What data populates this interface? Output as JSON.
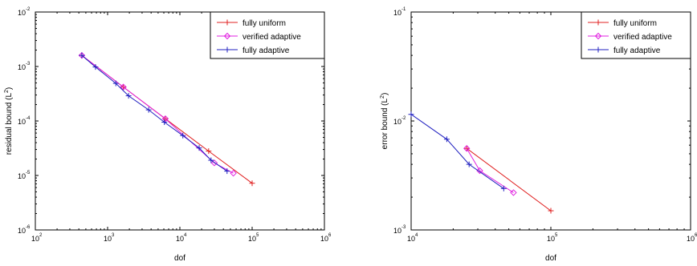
{
  "chart_data": [
    {
      "type": "line",
      "xscale": "log",
      "yscale": "log",
      "xlabel": "dof",
      "ylabel": "residual bound (L",
      "ylabel_sup": "2",
      "ylabel_suffix": ")",
      "xlim": [
        100,
        1000000
      ],
      "ylim": [
        1e-06,
        0.01
      ],
      "x_tick_exponents": [
        "2",
        "3",
        "4",
        "5",
        "6"
      ],
      "y_tick_exponents": [
        "-6",
        "-5",
        "-4",
        "-3",
        "-2"
      ],
      "grid": false,
      "legend_position": "top-right",
      "series": [
        {
          "name": "fully uniform",
          "color": "#e02020",
          "marker": "+",
          "x": [
            440,
            1650,
            6300,
            25000,
            100000
          ],
          "y": [
            0.0016,
            0.00042,
            0.00011,
            2.8e-05,
            7.2e-06
          ]
        },
        {
          "name": "verified adaptive",
          "color": "#e020e0",
          "marker": "diamond",
          "x": [
            440,
            1650,
            6300,
            30000,
            55000
          ],
          "y": [
            0.0016,
            0.00042,
            0.00011,
            1.7e-05,
            1.1e-05
          ]
        },
        {
          "name": "fully adaptive",
          "color": "#2020c0",
          "marker": "+",
          "x": [
            440,
            680,
            1300,
            1950,
            3700,
            6100,
            11000,
            18500,
            27000,
            45000
          ],
          "y": [
            0.0016,
            0.00098,
            0.00049,
            0.00029,
            0.00016,
            9.5e-05,
            5.4e-05,
            3.2e-05,
            1.9e-05,
            1.2e-05
          ]
        }
      ]
    },
    {
      "type": "line",
      "xscale": "log",
      "yscale": "log",
      "xlabel": "dof",
      "ylabel": "error bound (L",
      "ylabel_sup": "2",
      "ylabel_suffix": ")",
      "xlim": [
        10000,
        1000000
      ],
      "ylim": [
        0.001,
        0.1
      ],
      "x_tick_exponents": [
        "4",
        "5",
        "6"
      ],
      "y_tick_exponents": [
        "-3",
        "-2",
        "-1"
      ],
      "grid": false,
      "legend_position": "top-right",
      "series": [
        {
          "name": "fully uniform",
          "color": "#e02020",
          "marker": "+",
          "x": [
            25000,
            100000
          ],
          "y": [
            0.0056,
            0.0015
          ]
        },
        {
          "name": "verified adaptive",
          "color": "#e020e0",
          "marker": "diamond",
          "x": [
            25000,
            31000,
            54000
          ],
          "y": [
            0.0056,
            0.0035,
            0.0022
          ]
        },
        {
          "name": "fully adaptive",
          "color": "#2020c0",
          "marker": "+",
          "x": [
            10000,
            18000,
            26000,
            46000
          ],
          "y": [
            0.0115,
            0.0068,
            0.004,
            0.0024
          ]
        }
      ]
    }
  ]
}
